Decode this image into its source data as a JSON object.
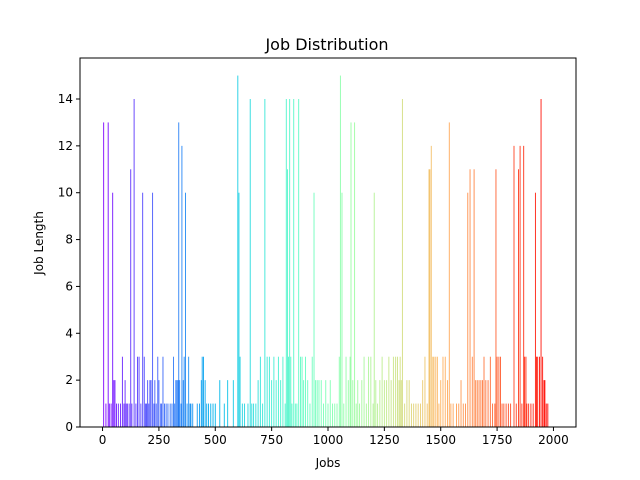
{
  "chart_data": {
    "type": "bar",
    "title": "Job Distribution",
    "xlabel": "Jobs",
    "ylabel": "Job Length",
    "xlim": [
      -100,
      2100
    ],
    "ylim": [
      0,
      15.75
    ],
    "xticks": [
      0,
      250,
      500,
      750,
      1000,
      1250,
      1500,
      1750,
      2000
    ],
    "yticks": [
      0,
      2,
      4,
      6,
      8,
      10,
      12,
      14
    ],
    "colormap": "rainbow",
    "grid": false,
    "legend": "none",
    "x_range": [
      0,
      1999
    ],
    "jobs": [
      [
        5,
        13
      ],
      [
        15,
        1
      ],
      [
        25,
        13
      ],
      [
        30,
        1
      ],
      [
        38,
        1
      ],
      [
        45,
        10
      ],
      [
        50,
        2
      ],
      [
        55,
        2
      ],
      [
        62,
        1
      ],
      [
        70,
        1
      ],
      [
        80,
        1
      ],
      [
        88,
        3
      ],
      [
        95,
        1
      ],
      [
        100,
        2
      ],
      [
        105,
        1
      ],
      [
        110,
        1
      ],
      [
        118,
        1
      ],
      [
        125,
        11
      ],
      [
        130,
        1
      ],
      [
        140,
        14
      ],
      [
        148,
        1
      ],
      [
        155,
        3
      ],
      [
        162,
        3
      ],
      [
        170,
        1
      ],
      [
        178,
        10
      ],
      [
        185,
        3
      ],
      [
        190,
        1
      ],
      [
        195,
        1
      ],
      [
        200,
        2
      ],
      [
        205,
        1
      ],
      [
        210,
        2
      ],
      [
        215,
        2
      ],
      [
        222,
        10
      ],
      [
        228,
        1
      ],
      [
        232,
        2
      ],
      [
        238,
        1
      ],
      [
        245,
        3
      ],
      [
        250,
        2
      ],
      [
        258,
        1
      ],
      [
        262,
        1
      ],
      [
        268,
        3
      ],
      [
        275,
        1
      ],
      [
        282,
        1
      ],
      [
        290,
        1
      ],
      [
        300,
        1
      ],
      [
        308,
        1
      ],
      [
        315,
        3
      ],
      [
        320,
        1
      ],
      [
        325,
        2
      ],
      [
        330,
        2
      ],
      [
        335,
        2
      ],
      [
        338,
        13
      ],
      [
        342,
        2
      ],
      [
        348,
        1
      ],
      [
        352,
        12
      ],
      [
        358,
        2
      ],
      [
        362,
        3
      ],
      [
        368,
        10
      ],
      [
        375,
        1
      ],
      [
        382,
        3
      ],
      [
        388,
        1
      ],
      [
        392,
        1
      ],
      [
        400,
        1
      ],
      [
        420,
        1
      ],
      [
        430,
        1
      ],
      [
        438,
        2
      ],
      [
        442,
        3
      ],
      [
        448,
        3
      ],
      [
        455,
        2
      ],
      [
        462,
        1
      ],
      [
        470,
        1
      ],
      [
        480,
        1
      ],
      [
        490,
        1
      ],
      [
        500,
        1
      ],
      [
        520,
        2
      ],
      [
        540,
        1
      ],
      [
        555,
        2
      ],
      [
        580,
        2
      ],
      [
        600,
        15
      ],
      [
        605,
        10
      ],
      [
        610,
        3
      ],
      [
        620,
        1
      ],
      [
        630,
        1
      ],
      [
        645,
        1
      ],
      [
        655,
        14
      ],
      [
        662,
        1
      ],
      [
        670,
        1
      ],
      [
        680,
        1
      ],
      [
        690,
        2
      ],
      [
        700,
        3
      ],
      [
        710,
        1
      ],
      [
        720,
        14
      ],
      [
        730,
        3
      ],
      [
        740,
        3
      ],
      [
        750,
        2
      ],
      [
        760,
        3
      ],
      [
        770,
        2
      ],
      [
        780,
        3
      ],
      [
        790,
        2
      ],
      [
        800,
        3
      ],
      [
        810,
        1
      ],
      [
        815,
        14
      ],
      [
        820,
        11
      ],
      [
        825,
        3
      ],
      [
        830,
        14
      ],
      [
        835,
        3
      ],
      [
        840,
        1
      ],
      [
        848,
        14
      ],
      [
        855,
        1
      ],
      [
        862,
        1
      ],
      [
        870,
        14
      ],
      [
        878,
        3
      ],
      [
        885,
        3
      ],
      [
        892,
        2
      ],
      [
        900,
        3
      ],
      [
        910,
        2
      ],
      [
        920,
        1
      ],
      [
        930,
        3
      ],
      [
        938,
        10
      ],
      [
        945,
        2
      ],
      [
        952,
        2
      ],
      [
        960,
        2
      ],
      [
        970,
        2
      ],
      [
        980,
        1
      ],
      [
        990,
        2
      ],
      [
        1000,
        1
      ],
      [
        1010,
        2
      ],
      [
        1020,
        1
      ],
      [
        1030,
        1
      ],
      [
        1040,
        1
      ],
      [
        1050,
        3
      ],
      [
        1055,
        15
      ],
      [
        1062,
        10
      ],
      [
        1070,
        1
      ],
      [
        1080,
        3
      ],
      [
        1090,
        2
      ],
      [
        1098,
        3
      ],
      [
        1102,
        13
      ],
      [
        1110,
        2
      ],
      [
        1118,
        13
      ],
      [
        1125,
        1
      ],
      [
        1132,
        2
      ],
      [
        1140,
        1
      ],
      [
        1150,
        2
      ],
      [
        1160,
        3
      ],
      [
        1170,
        1
      ],
      [
        1180,
        3
      ],
      [
        1190,
        3
      ],
      [
        1200,
        1
      ],
      [
        1205,
        10
      ],
      [
        1212,
        2
      ],
      [
        1220,
        1
      ],
      [
        1230,
        2
      ],
      [
        1240,
        3
      ],
      [
        1250,
        2
      ],
      [
        1260,
        2
      ],
      [
        1270,
        3
      ],
      [
        1280,
        2
      ],
      [
        1290,
        3
      ],
      [
        1300,
        3
      ],
      [
        1308,
        3
      ],
      [
        1315,
        2
      ],
      [
        1320,
        3
      ],
      [
        1325,
        2
      ],
      [
        1330,
        14
      ],
      [
        1340,
        1
      ],
      [
        1350,
        2
      ],
      [
        1360,
        2
      ],
      [
        1370,
        1
      ],
      [
        1380,
        1
      ],
      [
        1390,
        1
      ],
      [
        1400,
        1
      ],
      [
        1410,
        1
      ],
      [
        1420,
        2
      ],
      [
        1430,
        3
      ],
      [
        1440,
        1
      ],
      [
        1448,
        11
      ],
      [
        1452,
        11
      ],
      [
        1458,
        12
      ],
      [
        1465,
        3
      ],
      [
        1470,
        3
      ],
      [
        1478,
        3
      ],
      [
        1485,
        3
      ],
      [
        1492,
        1
      ],
      [
        1500,
        2
      ],
      [
        1510,
        3
      ],
      [
        1520,
        3
      ],
      [
        1530,
        2
      ],
      [
        1538,
        13
      ],
      [
        1545,
        1
      ],
      [
        1555,
        1
      ],
      [
        1570,
        1
      ],
      [
        1580,
        1
      ],
      [
        1590,
        2
      ],
      [
        1600,
        1
      ],
      [
        1610,
        1
      ],
      [
        1620,
        10
      ],
      [
        1630,
        11
      ],
      [
        1640,
        3
      ],
      [
        1648,
        11
      ],
      [
        1655,
        2
      ],
      [
        1662,
        2
      ],
      [
        1670,
        2
      ],
      [
        1678,
        2
      ],
      [
        1685,
        2
      ],
      [
        1692,
        3
      ],
      [
        1700,
        2
      ],
      [
        1710,
        2
      ],
      [
        1720,
        3
      ],
      [
        1730,
        1
      ],
      [
        1740,
        1
      ],
      [
        1745,
        11
      ],
      [
        1750,
        3
      ],
      [
        1758,
        3
      ],
      [
        1765,
        3
      ],
      [
        1772,
        1
      ],
      [
        1780,
        1
      ],
      [
        1790,
        1
      ],
      [
        1800,
        1
      ],
      [
        1810,
        1
      ],
      [
        1825,
        12
      ],
      [
        1835,
        1
      ],
      [
        1845,
        11
      ],
      [
        1852,
        12
      ],
      [
        1860,
        1
      ],
      [
        1868,
        12
      ],
      [
        1872,
        3
      ],
      [
        1878,
        3
      ],
      [
        1882,
        1
      ],
      [
        1890,
        1
      ],
      [
        1900,
        1
      ],
      [
        1910,
        1
      ],
      [
        1920,
        10
      ],
      [
        1925,
        3
      ],
      [
        1930,
        3
      ],
      [
        1938,
        3
      ],
      [
        1945,
        14
      ],
      [
        1952,
        3
      ],
      [
        1958,
        2
      ],
      [
        1962,
        2
      ],
      [
        1968,
        1
      ],
      [
        1975,
        1
      ]
    ]
  }
}
